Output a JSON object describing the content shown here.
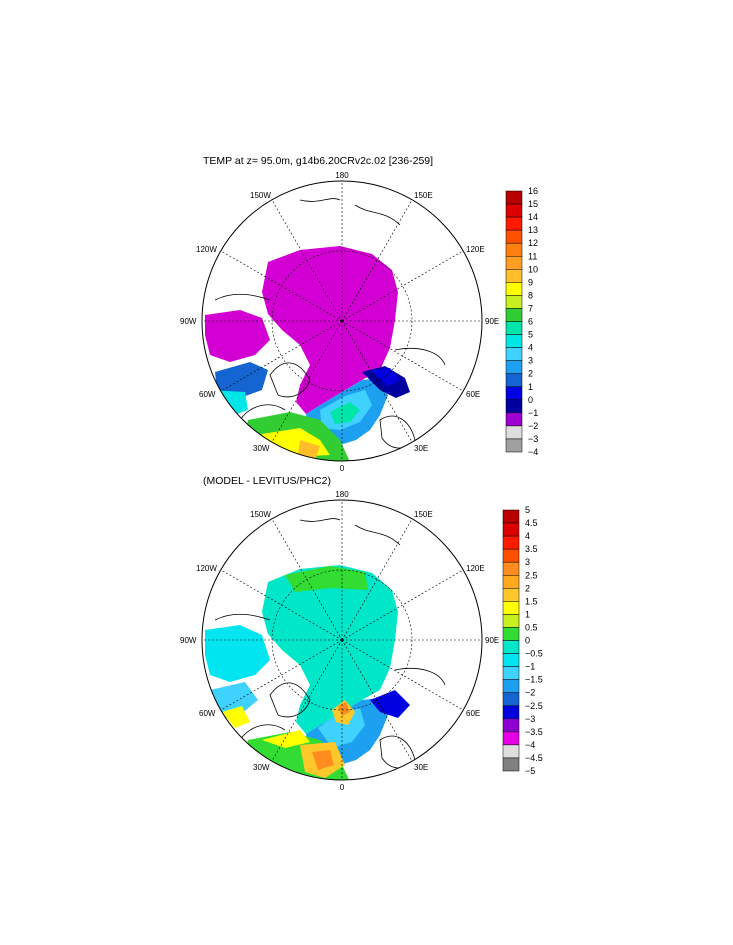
{
  "panels": [
    {
      "title": "TEMP at z=  95.0m, g14b6.20CRv2c.02 [236-259]",
      "longitude_labels": {
        "n180": "180",
        "w150": "150W",
        "e150": "150E",
        "w120": "120W",
        "e120": "120E",
        "w90": "90W",
        "e90": "90E",
        "w60": "60W",
        "e60": "60E",
        "w30": "30W",
        "e30": "30E",
        "s0": "0"
      },
      "colorbar": {
        "labels": [
          "16",
          "15",
          "14",
          "13",
          "12",
          "11",
          "10",
          "9",
          "8",
          "7",
          "6",
          "5",
          "4",
          "3",
          "2",
          "1",
          "0",
          "−1",
          "−2",
          "−3",
          "−4"
        ],
        "colors": [
          "#b80000",
          "#dc0000",
          "#ff1a00",
          "#ff5000",
          "#ff7f10",
          "#ff9e20",
          "#ffbd2a",
          "#ffff00",
          "#c8f020",
          "#32cd32",
          "#00e5a8",
          "#00e5e5",
          "#40d2ff",
          "#1ea0f0",
          "#1464d2",
          "#0000e0",
          "#0000a0",
          "#a000d0",
          "#dedede",
          "#a0a0a0"
        ]
      }
    },
    {
      "title": "(MODEL - LEVITUS/PHC2)",
      "longitude_labels": {
        "n180": "180",
        "w150": "150W",
        "e150": "150E",
        "w120": "120W",
        "e120": "120E",
        "w90": "90W",
        "e90": "90E",
        "w60": "60W",
        "e60": "60E",
        "w30": "30W",
        "e30": "30E",
        "s0": "0"
      },
      "colorbar": {
        "labels": [
          "5",
          "4.5",
          "4",
          "3.5",
          "3",
          "2.5",
          "2",
          "1.5",
          "1",
          "0.5",
          "0",
          "−0.5",
          "−1",
          "−1.5",
          "−2",
          "−2.5",
          "−3",
          "−3.5",
          "−4",
          "−4.5",
          "−5"
        ],
        "colors": [
          "#b80000",
          "#dc0000",
          "#ff1a00",
          "#ff5000",
          "#ff8c1e",
          "#ffa820",
          "#ffc82a",
          "#ffff00",
          "#c8f020",
          "#32dc32",
          "#00e6c8",
          "#00e5f0",
          "#40d2ff",
          "#1ea0f0",
          "#1464d2",
          "#0000e0",
          "#8c00d2",
          "#e600e6",
          "#dedede",
          "#808080"
        ]
      }
    }
  ],
  "colors": {
    "ocean_ice_cold": "#d200d2",
    "land": "#ffffff",
    "outline": "#000000"
  }
}
